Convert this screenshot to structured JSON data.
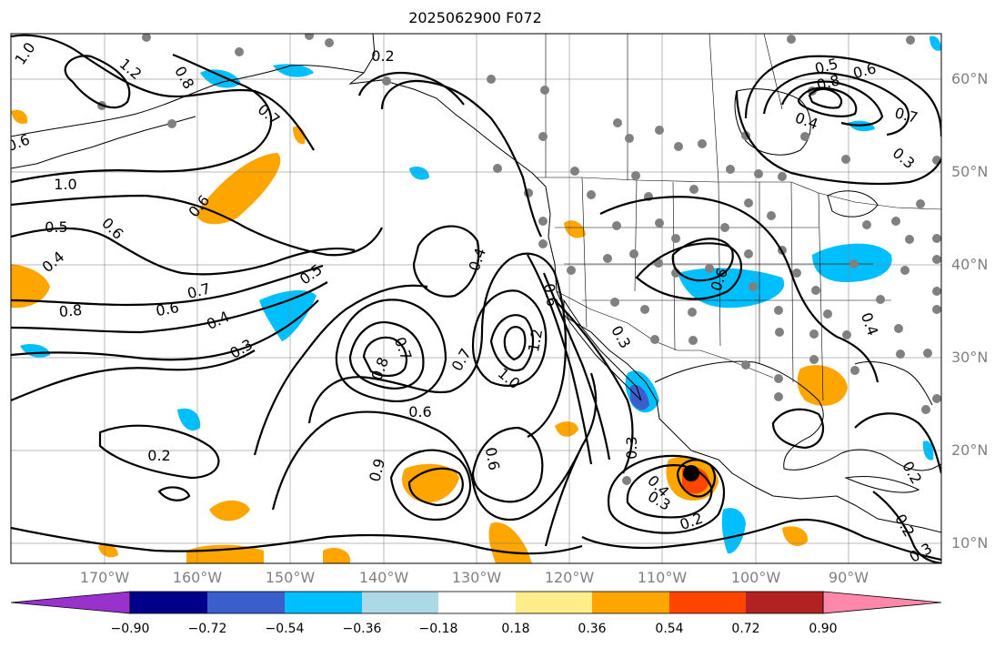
{
  "title": "2025062900 F072",
  "latitude_labels": [
    "60°N",
    "50°N",
    "40°N",
    "30°N",
    "20°N",
    "10°N"
  ],
  "longitude_labels": [
    "170°W",
    "160°W",
    "150°W",
    "140°W",
    "130°W",
    "120°W",
    "110°W",
    "100°W",
    "90°W"
  ],
  "colorbar": {
    "tick_labels": [
      "−0.90",
      "−0.72",
      "−0.54",
      "−0.36",
      "−0.18",
      "0.18",
      "0.36",
      "0.54",
      "0.72",
      "0.90"
    ],
    "colors": [
      "#9932cc",
      "#00008b",
      "#3a5fcd",
      "#00bfff",
      "#add8e6",
      "#ffffff",
      "#ffec8b",
      "#ffa500",
      "#ff4500",
      "#b22222",
      "#ff88aa"
    ]
  },
  "contour_labels": [
    "1.0",
    "1.2",
    "0.8",
    "0.7",
    "0.2",
    "0.5",
    "0.6",
    "0.8",
    "0.4",
    "0.7",
    "0.3",
    "1.0",
    "0.5",
    "0.6",
    "0.4",
    "0.8",
    "0.7",
    "0.6",
    "0.4",
    "0.3",
    "0.5",
    "0.6",
    "0.4",
    "0.7",
    "0.8",
    "0.7",
    "0.6",
    "1.2",
    "1.0",
    "0.6",
    "0.6",
    "0.9",
    "0.2",
    "0.6",
    "0.3",
    "0.4",
    "0.2",
    "0.3",
    "0.4",
    "0.2",
    "0.3",
    "0.2",
    "0.6",
    "0.3"
  ],
  "colors": {
    "contour": "#000000",
    "station_dot": "#808080",
    "grid": "#808080",
    "cyclone": "#000000"
  }
}
